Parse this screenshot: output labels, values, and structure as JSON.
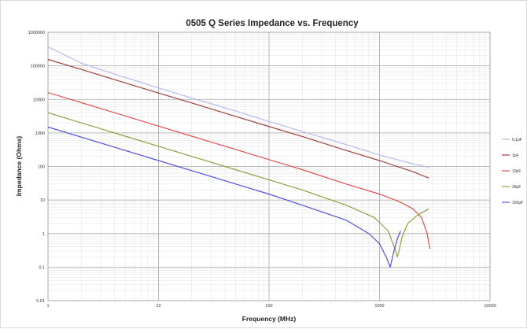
{
  "chart_data": {
    "type": "line",
    "title": "0505 Q Series Impedance vs. Frequency",
    "xlabel": "Frequency (MHz)",
    "ylabel": "Impedance (Ohms)",
    "x_scale": "log",
    "y_scale": "log",
    "xlim": [
      1,
      10000
    ],
    "ylim": [
      0.01,
      1000000
    ],
    "x_ticks": [
      1,
      10,
      100,
      1000,
      10000
    ],
    "x_tick_labels": [
      "1",
      "10",
      "100",
      "1000",
      "10000"
    ],
    "y_ticks": [
      0.01,
      0.1,
      1,
      10,
      100,
      1000,
      10000,
      100000,
      1000000
    ],
    "y_tick_labels": [
      "0.01",
      "0.1",
      "1",
      "10",
      "100",
      "1000",
      "10000",
      "100000",
      "1000000"
    ],
    "grid": true,
    "legend_position": "right",
    "series": [
      {
        "name": "0.1pF",
        "color": "#b8b8f0",
        "x": [
          1,
          2,
          5,
          10,
          20,
          50,
          100,
          200,
          500,
          1000,
          2000,
          2800
        ],
        "y": [
          370000,
          120000,
          45000,
          22000,
          11000,
          4500,
          2200,
          1100,
          450,
          220,
          120,
          95
        ]
      },
      {
        "name": "1pF",
        "color": "#a04040",
        "x": [
          1,
          2,
          5,
          10,
          20,
          50,
          100,
          200,
          500,
          1000,
          2000,
          2800
        ],
        "y": [
          155000,
          78000,
          31000,
          15500,
          7800,
          3100,
          1550,
          780,
          300,
          150,
          70,
          45
        ]
      },
      {
        "name": "10pF",
        "color": "#e05050",
        "x": [
          1,
          2,
          5,
          10,
          20,
          50,
          100,
          200,
          500,
          1000,
          1500,
          2000,
          2400,
          2700,
          2850
        ],
        "y": [
          16000,
          8000,
          3200,
          1600,
          800,
          320,
          160,
          80,
          30,
          15,
          9,
          5.5,
          3,
          1,
          0.35
        ]
      },
      {
        "name": "39pF",
        "color": "#8ca040",
        "x": [
          1,
          2,
          5,
          10,
          20,
          50,
          100,
          200,
          500,
          900,
          1200,
          1400,
          1450,
          1500,
          1600,
          1800,
          2200,
          2800
        ],
        "y": [
          4000,
          2000,
          800,
          400,
          200,
          80,
          40,
          20,
          7,
          3,
          1.2,
          0.3,
          0.2,
          0.3,
          0.8,
          2,
          3.5,
          5.5
        ]
      },
      {
        "name": "100pF",
        "color": "#5050e0",
        "x": [
          1,
          2,
          5,
          10,
          20,
          50,
          100,
          200,
          500,
          800,
          1000,
          1150,
          1250,
          1350,
          1450,
          1550
        ],
        "y": [
          1500,
          750,
          300,
          150,
          75,
          30,
          15,
          7,
          2.5,
          1,
          0.5,
          0.2,
          0.1,
          0.3,
          0.7,
          1.2
        ]
      }
    ]
  }
}
